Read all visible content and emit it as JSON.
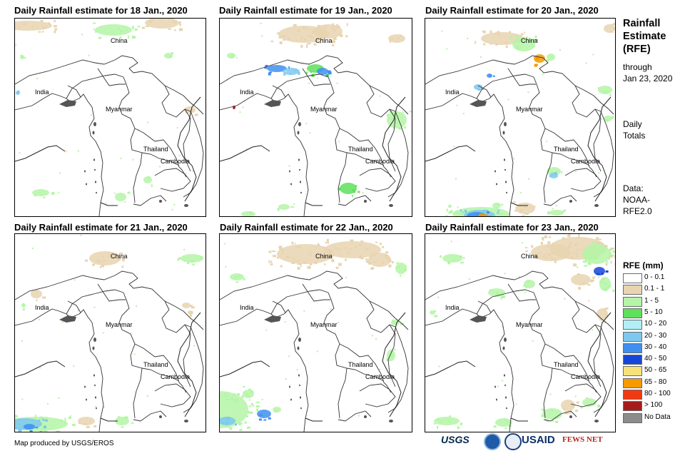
{
  "panels": [
    {
      "title": "Daily Rainfall estimate for 18 Jan., 2020"
    },
    {
      "title": "Daily Rainfall estimate for 19 Jan., 2020"
    },
    {
      "title": "Daily Rainfall estimate for 20 Jan., 2020"
    },
    {
      "title": "Daily Rainfall estimate for 21 Jan., 2020"
    },
    {
      "title": "Daily Rainfall estimate for 22 Jan., 2020"
    },
    {
      "title": "Daily Rainfall estimate for 23 Jan., 2020"
    }
  ],
  "map_labels": {
    "china": "China",
    "india": "India",
    "myanmar": "Myanmar",
    "thailand": "Thailand",
    "cambodia": "Cambodia"
  },
  "side_panel": {
    "title_line1": "Rainfall",
    "title_line2": "Estimate",
    "title_line3": "(RFE)",
    "through_line1": "through",
    "through_line2": "Jan 23, 2020",
    "totals_line1": "Daily",
    "totals_line2": "Totals",
    "data_line1": "Data:",
    "data_line2": "NOAA-",
    "data_line3": "RFE2.0"
  },
  "legend": {
    "title": "RFE (mm)",
    "items": [
      {
        "label": "0 - 0.1",
        "color": "#ffffff"
      },
      {
        "label": "0.1 - 1",
        "color": "#e8d4b0"
      },
      {
        "label": "1 - 5",
        "color": "#b4f5a6"
      },
      {
        "label": "5 - 10",
        "color": "#5de05a"
      },
      {
        "label": "10 - 20",
        "color": "#b2eef5"
      },
      {
        "label": "20 - 30",
        "color": "#7cc8f0"
      },
      {
        "label": "30 - 40",
        "color": "#3f8ff0"
      },
      {
        "label": "40 - 50",
        "color": "#1646d8"
      },
      {
        "label": "50 - 65",
        "color": "#f7e27a"
      },
      {
        "label": "65 - 80",
        "color": "#f59a00"
      },
      {
        "label": "80 - 100",
        "color": "#f23a12"
      },
      {
        "label": "> 100",
        "color": "#a51c1c"
      },
      {
        "label": "No Data",
        "color": "#8c8c8c"
      }
    ]
  },
  "footer": {
    "credit": "Map produced by USGS/EROS",
    "logo_usgs": "USGS",
    "logo_usaid": "USAID",
    "logo_fewsnet": "FEWS NET"
  }
}
